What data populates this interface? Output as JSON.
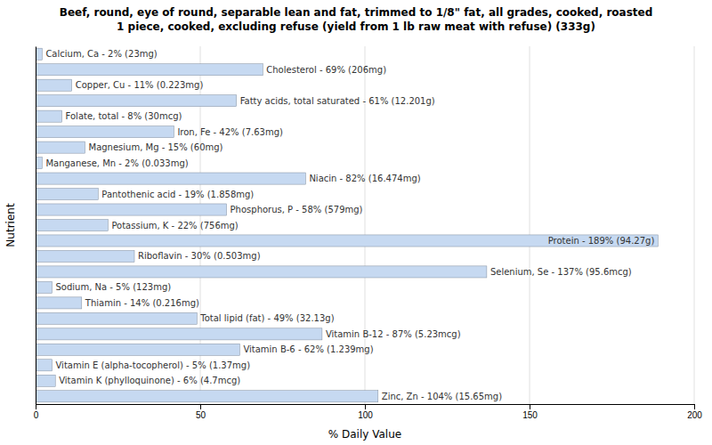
{
  "chart_data": {
    "type": "bar",
    "orientation": "horizontal",
    "title": "Beef, round, eye of round, separable lean and fat, trimmed to 1/8\" fat, all grades, cooked, roasted\n1 piece, cooked, excluding refuse (yield from 1 lb raw meat with refuse) (333g)",
    "xlabel": "% Daily Value",
    "ylabel": "Nutrient",
    "categories": [
      "Calcium, Ca - 2% (23mg)",
      "Cholesterol - 69% (206mg)",
      "Copper, Cu - 11% (0.223mg)",
      "Fatty acids, total saturated - 61% (12.201g)",
      "Folate, total - 8% (30mcg)",
      "Iron, Fe - 42% (7.63mg)",
      "Magnesium, Mg - 15% (60mg)",
      "Manganese, Mn - 2% (0.033mg)",
      "Niacin - 82% (16.474mg)",
      "Pantothenic acid - 19% (1.858mg)",
      "Phosphorus, P - 58% (579mg)",
      "Potassium, K - 22% (756mg)",
      "Protein - 189% (94.27g)",
      "Riboflavin - 30% (0.503mg)",
      "Selenium, Se - 137% (95.6mcg)",
      "Sodium, Na - 5% (123mg)",
      "Thiamin - 14% (0.216mg)",
      "Total lipid (fat) - 49% (32.13g)",
      "Vitamin B-12 - 87% (5.23mcg)",
      "Vitamin B-6 - 62% (1.239mg)",
      "Vitamin E (alpha-tocopherol) - 5% (1.37mg)",
      "Vitamin K (phylloquinone) - 6% (4.7mcg)",
      "Zinc, Zn - 104% (15.65mg)"
    ],
    "values": [
      2,
      69,
      11,
      61,
      8,
      42,
      15,
      2,
      82,
      19,
      58,
      22,
      189,
      30,
      137,
      5,
      14,
      49,
      87,
      62,
      5,
      6,
      104
    ],
    "color": "#c6d9f1",
    "xlim": [
      0,
      200
    ],
    "xticks": [
      0,
      50,
      100,
      150,
      200
    ],
    "grid": true,
    "tick_labels": "x"
  }
}
